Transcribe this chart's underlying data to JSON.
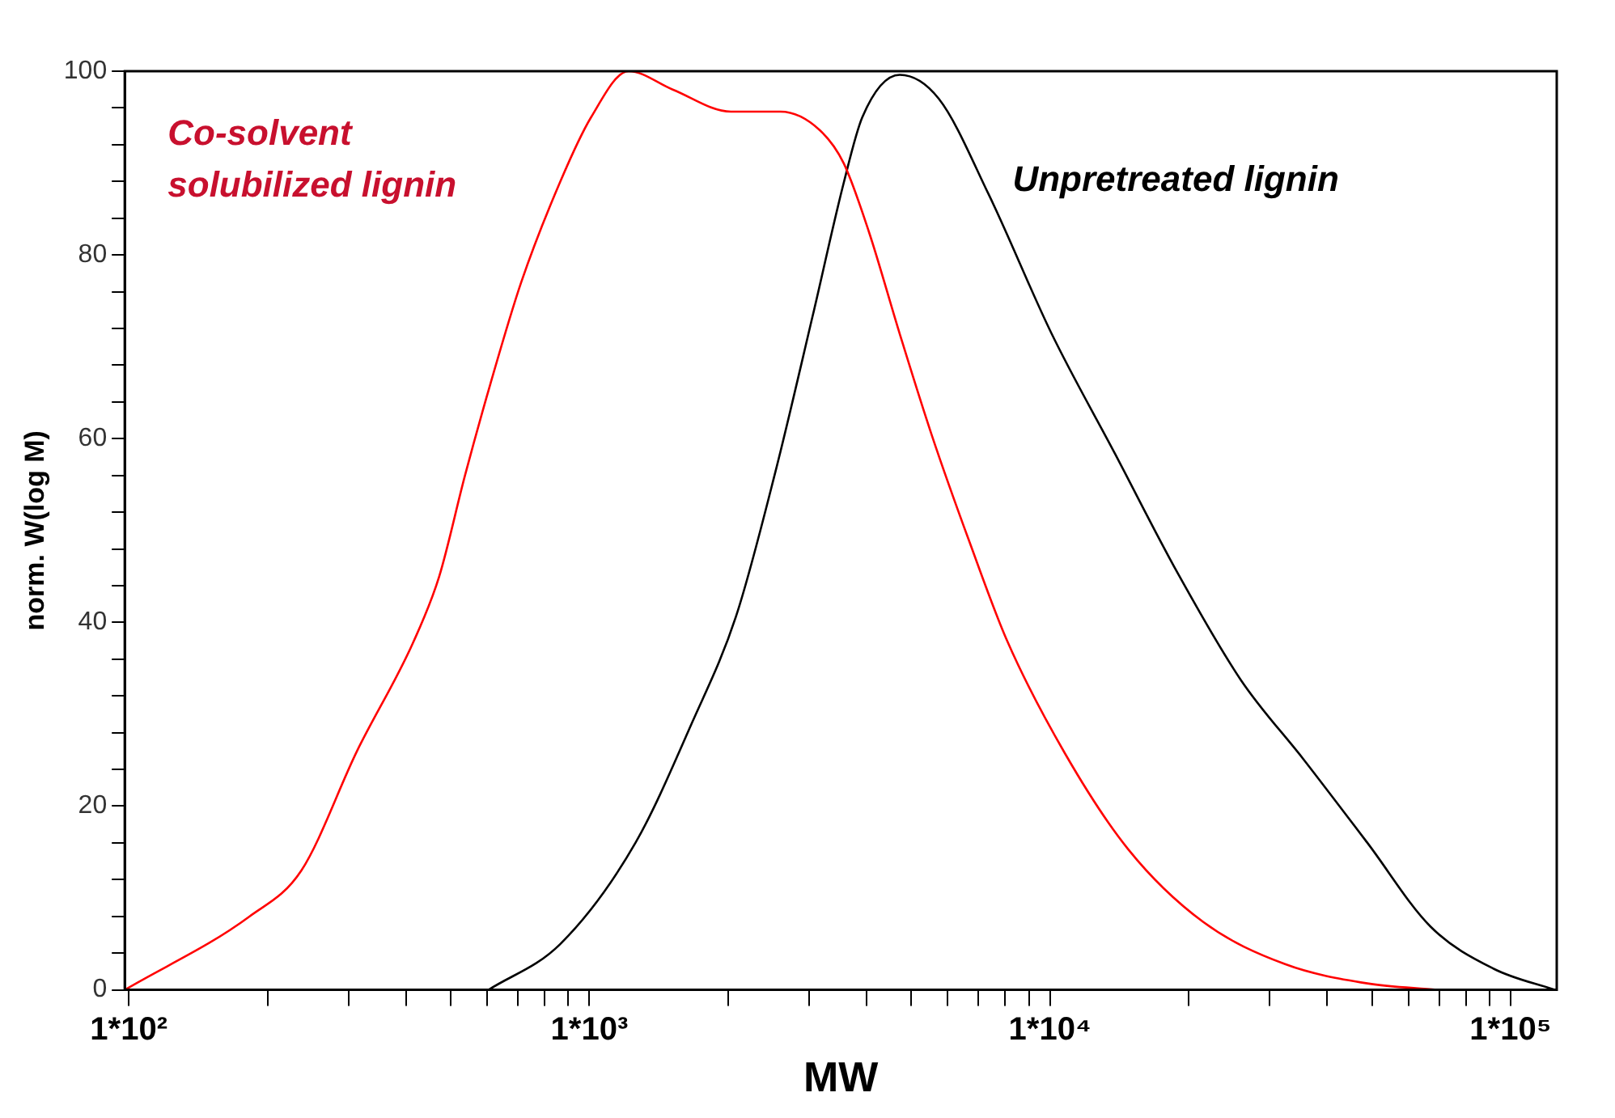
{
  "chart_data": {
    "type": "line",
    "xlabel": "MW",
    "ylabel": "norm. W(log M)",
    "log": "x",
    "grid": false,
    "legend": false,
    "marker": "none",
    "line_style": "solid",
    "xlim": [
      98,
      126000
    ],
    "xticks": [
      {
        "value": 100,
        "label": "1*10²"
      },
      {
        "value": 200,
        "label": null
      },
      {
        "value": 300,
        "label": null
      },
      {
        "value": 400,
        "label": null
      },
      {
        "value": 500,
        "label": null
      },
      {
        "value": 600,
        "label": null
      },
      {
        "value": 700,
        "label": null
      },
      {
        "value": 800,
        "label": null
      },
      {
        "value": 900,
        "label": null
      },
      {
        "value": 1000,
        "label": "1*10³"
      },
      {
        "value": 2000,
        "label": null
      },
      {
        "value": 3000,
        "label": null
      },
      {
        "value": 4000,
        "label": null
      },
      {
        "value": 5000,
        "label": null
      },
      {
        "value": 6000,
        "label": null
      },
      {
        "value": 7000,
        "label": null
      },
      {
        "value": 8000,
        "label": null
      },
      {
        "value": 9000,
        "label": null
      },
      {
        "value": 10000,
        "label": "1*10⁴"
      },
      {
        "value": 20000,
        "label": null
      },
      {
        "value": 30000,
        "label": null
      },
      {
        "value": 40000,
        "label": null
      },
      {
        "value": 50000,
        "label": null
      },
      {
        "value": 60000,
        "label": null
      },
      {
        "value": 70000,
        "label": null
      },
      {
        "value": 80000,
        "label": null
      },
      {
        "value": 90000,
        "label": null
      },
      {
        "value": 100000,
        "label": "1*10⁵"
      }
    ],
    "ylim": [
      0,
      100
    ],
    "yticks": [
      0,
      {
        "value": 4,
        "label": null
      },
      {
        "value": 8,
        "label": null
      },
      {
        "value": 12,
        "label": null
      },
      {
        "value": 16,
        "label": null
      },
      20,
      {
        "value": 24,
        "label": null
      },
      {
        "value": 28,
        "label": null
      },
      {
        "value": 32,
        "label": null
      },
      {
        "value": 36,
        "label": null
      },
      40,
      {
        "value": 44,
        "label": null
      },
      {
        "value": 48,
        "label": null
      },
      {
        "value": 52,
        "label": null
      },
      {
        "value": 56,
        "label": null
      },
      60,
      {
        "value": 64,
        "label": null
      },
      {
        "value": 68,
        "label": null
      },
      {
        "value": 72,
        "label": null
      },
      {
        "value": 76,
        "label": null
      },
      80,
      {
        "value": 84,
        "label": null
      },
      {
        "value": 88,
        "label": null
      },
      {
        "value": 92,
        "label": null
      },
      {
        "value": 96,
        "label": null
      },
      100
    ],
    "series": [
      {
        "name": "Co-solvent solubilized lignin",
        "color": "#ff0000",
        "x": [
          98,
          183,
          237,
          313,
          416,
          472,
          537,
          610,
          711,
          865,
          1009,
          1217,
          1517,
          2029,
          2600,
          3162,
          3565,
          4046,
          4720,
          5546,
          6695,
          8072,
          10790,
          14790,
          21500,
          32400,
          48900,
          69200
        ],
        "values": [
          0,
          8,
          13,
          26,
          38,
          45,
          56,
          66,
          77,
          88,
          95,
          100,
          98,
          95.6,
          95.6,
          93.6,
          90,
          82.5,
          71.4,
          60.3,
          48.7,
          38,
          25.7,
          15.3,
          7.4,
          2.8,
          0.7,
          0
        ]
      },
      {
        "name": "Unpretreated lignin",
        "color": "#000000",
        "x": [
          604,
          865,
          1259,
          1668,
          2083,
          2535,
          3055,
          3565,
          3915,
          4720,
          5736,
          7360,
          10090,
          13830,
          18970,
          26000,
          35650,
          48900,
          67000,
          91900,
          124700
        ],
        "values": [
          0,
          5,
          16,
          29,
          40.7,
          56.4,
          73.4,
          87.8,
          95,
          99.6,
          97,
          86.6,
          71.4,
          58.4,
          45.3,
          33.7,
          25,
          16,
          6.9,
          2.3,
          0
        ]
      }
    ]
  }
}
